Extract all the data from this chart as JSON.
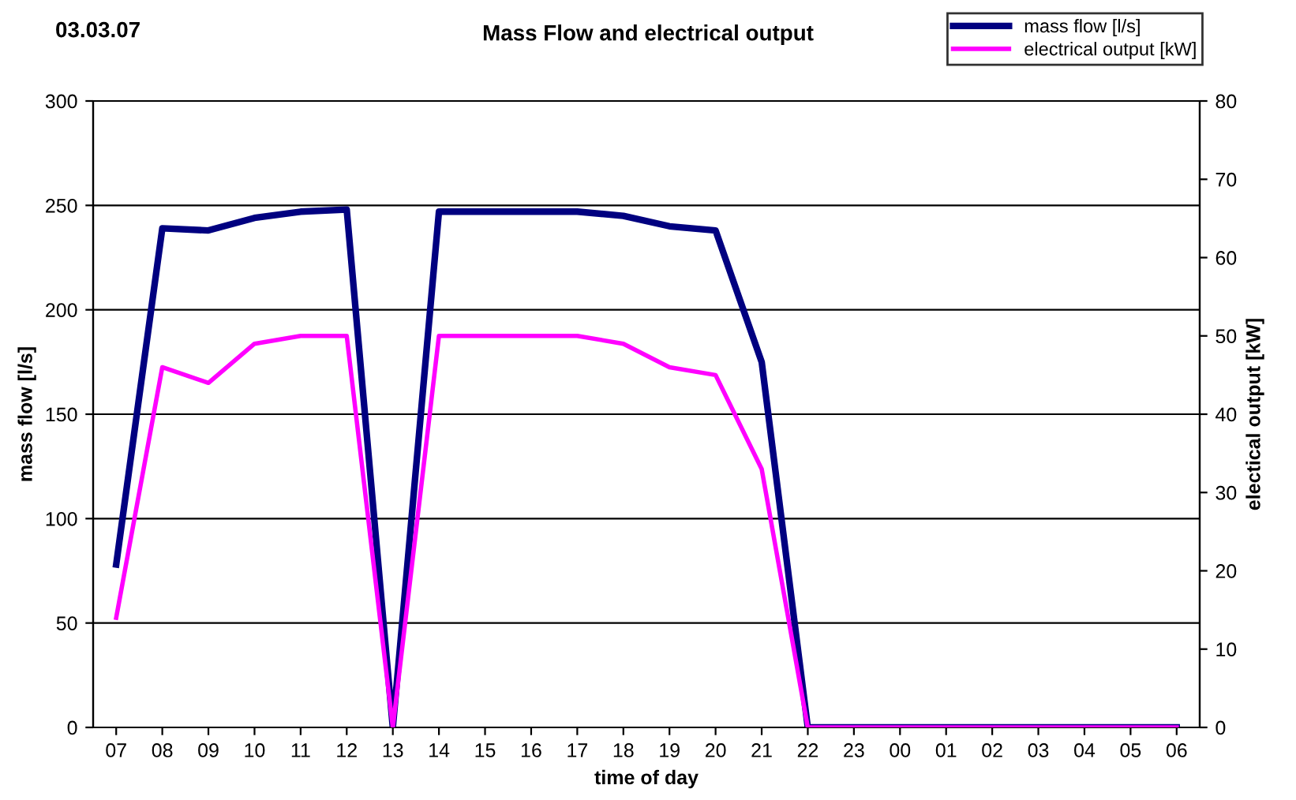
{
  "chart_data": {
    "type": "line",
    "title": "Mass Flow and electrical output",
    "annotations": [
      "03.03.07"
    ],
    "xlabel": "time of day",
    "ylabel": "mass flow [l/s]",
    "y2label": "electical output [kW]",
    "categories": [
      "07",
      "08",
      "09",
      "10",
      "11",
      "12",
      "13",
      "14",
      "15",
      "16",
      "17",
      "18",
      "19",
      "20",
      "21",
      "22",
      "23",
      "00",
      "01",
      "02",
      "03",
      "04",
      "05",
      "06"
    ],
    "series": [
      {
        "name": "mass flow [l/s]",
        "color": "#000080",
        "values": [
          78,
          239,
          238,
          244,
          247,
          248,
          0,
          247,
          247,
          247,
          247,
          245,
          240,
          238,
          175,
          0,
          0,
          0,
          0,
          0,
          0,
          0,
          0,
          0
        ]
      },
      {
        "name": "electrical output [kW]",
        "color": "#ff00ff",
        "axis": "y2",
        "values": [
          14,
          46,
          44,
          49,
          50,
          50,
          0,
          50,
          50,
          50,
          50,
          49,
          46,
          45,
          33,
          0,
          0,
          0,
          0,
          0,
          0,
          0,
          0,
          0
        ]
      }
    ],
    "ylim": [
      0,
      300
    ],
    "yticks": [
      0,
      50,
      100,
      150,
      200,
      250,
      300
    ],
    "y2lim": [
      0,
      80
    ],
    "y2ticks": [
      0,
      10,
      20,
      30,
      40,
      50,
      60,
      70,
      80
    ],
    "grid": "y",
    "legend": "top right",
    "marker": "none",
    "line_style": "solid"
  }
}
